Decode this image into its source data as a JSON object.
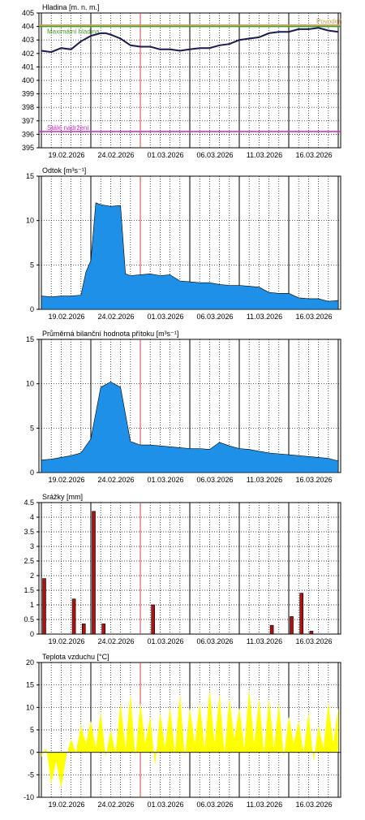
{
  "x_ticks": [
    "19.02.2026",
    "24.02.2026",
    "01.03.2026",
    "06.03.2026",
    "11.03.2026",
    "16.03.2026"
  ],
  "colors": {
    "level_line": "#1a1a50",
    "fill_blue": "#1e90e8",
    "precip_bar": "#b01010",
    "temp_fill": "#ffff00",
    "max_level": "#4a9a2a",
    "flood": "#c8a050",
    "stale_level": "#cc33cc",
    "today": "#d04040"
  },
  "chart_data": [
    {
      "id": "level",
      "type": "line",
      "title": "Hladina [m. n. m.]",
      "ylim": [
        395,
        405
      ],
      "yticks": [
        395,
        396,
        397,
        398,
        399,
        400,
        401,
        402,
        403,
        404,
        405
      ],
      "x_days": [
        0,
        1,
        2,
        3,
        4,
        5,
        6,
        6.5,
        7,
        8,
        9,
        10,
        11,
        12,
        13,
        14,
        15,
        16,
        17,
        18,
        19,
        20,
        21,
        22,
        23,
        24,
        25,
        26,
        27,
        28,
        29,
        30
      ],
      "values": [
        402.2,
        402.1,
        402.4,
        402.3,
        402.9,
        403.3,
        403.5,
        403.5,
        403.4,
        403.1,
        402.6,
        402.5,
        402.5,
        402.3,
        402.3,
        402.2,
        402.3,
        402.4,
        402.4,
        402.6,
        402.7,
        403.0,
        403.1,
        403.2,
        403.5,
        403.6,
        403.6,
        403.8,
        403.8,
        403.9,
        403.7,
        403.6
      ],
      "reference_lines": [
        {
          "label": "Maximální hladina",
          "value": 404.0,
          "color": "#4a9a2a"
        },
        {
          "label": "Povodeň",
          "value": 404.1,
          "color": "#c8a050"
        },
        {
          "label": "Stálé nadržení",
          "value": 396.2,
          "color": "#cc33cc"
        }
      ]
    },
    {
      "id": "outflow",
      "type": "area",
      "title": "Odtok [m³s⁻¹]",
      "ylim": [
        0,
        15
      ],
      "yticks": [
        0,
        5,
        10,
        15
      ],
      "x_days": [
        0,
        1,
        2,
        3,
        4,
        4.5,
        5,
        5.5,
        6,
        7,
        8,
        8.5,
        9,
        10,
        11,
        12,
        13,
        14,
        15,
        16,
        17,
        18,
        19,
        20,
        21,
        22,
        23,
        24,
        25,
        26,
        27,
        28,
        29,
        30
      ],
      "values": [
        1.5,
        1.4,
        1.5,
        1.5,
        1.6,
        4.2,
        5.5,
        12.0,
        11.8,
        11.6,
        11.7,
        4.0,
        3.8,
        3.9,
        4.0,
        3.8,
        3.9,
        3.2,
        3.1,
        3.0,
        3.0,
        2.8,
        2.7,
        2.7,
        2.6,
        2.5,
        1.9,
        1.8,
        1.8,
        1.3,
        1.2,
        1.2,
        0.9,
        1.0
      ]
    },
    {
      "id": "inflow",
      "type": "area",
      "title": "Průměrná bilanční hodnota přítoku [m³s⁻¹]",
      "ylim": [
        0,
        15
      ],
      "yticks": [
        0,
        5,
        10,
        15
      ],
      "x_days": [
        0,
        1,
        2,
        3,
        4,
        5,
        6,
        7,
        8,
        9,
        10,
        11,
        12,
        13,
        14,
        15,
        16,
        17,
        18,
        19,
        20,
        21,
        22,
        23,
        24,
        25,
        26,
        27,
        28,
        29,
        30
      ],
      "values": [
        1.4,
        1.5,
        1.7,
        1.9,
        2.2,
        3.8,
        9.6,
        10.2,
        9.6,
        3.5,
        3.1,
        3.1,
        3.0,
        2.9,
        2.8,
        2.7,
        2.7,
        2.6,
        3.4,
        3.0,
        2.7,
        2.6,
        2.4,
        2.2,
        2.1,
        2.0,
        1.9,
        1.8,
        1.7,
        1.6,
        1.3
      ]
    },
    {
      "id": "precip",
      "type": "bar",
      "title": "Srážky [mm]",
      "ylim": [
        0,
        4.5
      ],
      "yticks": [
        0,
        0.5,
        1,
        1.5,
        2,
        2.5,
        3,
        3.5,
        4,
        4.5
      ],
      "x_days": [
        0,
        3,
        4,
        5,
        6,
        11,
        23,
        25,
        26,
        27
      ],
      "values": [
        1.9,
        1.2,
        0.35,
        4.2,
        0.35,
        1.0,
        0.3,
        0.6,
        1.4,
        0.1
      ]
    },
    {
      "id": "temp",
      "type": "area",
      "title": "Teplota vzduchu [°C]",
      "ylim": [
        -10,
        20
      ],
      "yticks": [
        -10,
        -5,
        0,
        5,
        10,
        15,
        20
      ],
      "x_days": [
        0,
        0.5,
        1,
        1.5,
        2,
        2.5,
        3,
        3.5,
        4,
        4.5,
        5,
        5.5,
        6,
        6.5,
        7,
        7.5,
        8,
        8.5,
        9,
        9.5,
        10,
        10.5,
        11,
        11.5,
        12,
        12.5,
        13,
        13.5,
        14,
        14.5,
        15,
        15.5,
        16,
        16.5,
        17,
        17.5,
        18,
        18.5,
        19,
        19.5,
        20,
        20.5,
        21,
        21.5,
        22,
        22.5,
        23,
        23.5,
        24,
        24.5,
        25,
        25.5,
        26,
        26.5,
        27,
        27.5,
        28,
        28.5,
        29,
        29.5,
        30
      ],
      "values": [
        -1,
        1,
        -7,
        -2,
        -8,
        -1,
        3,
        0,
        6,
        2,
        7,
        1,
        9,
        -1,
        5,
        0,
        11,
        1,
        13,
        -1,
        11,
        2,
        8,
        -3,
        9,
        1,
        10,
        0,
        13,
        -1,
        10,
        2,
        11,
        1,
        14,
        2,
        13,
        0,
        12,
        3,
        10,
        1,
        14,
        2,
        12,
        0,
        12,
        1,
        11,
        -1,
        8,
        2,
        7,
        0,
        9,
        -2,
        6,
        1,
        11,
        2,
        10
      ]
    }
  ]
}
